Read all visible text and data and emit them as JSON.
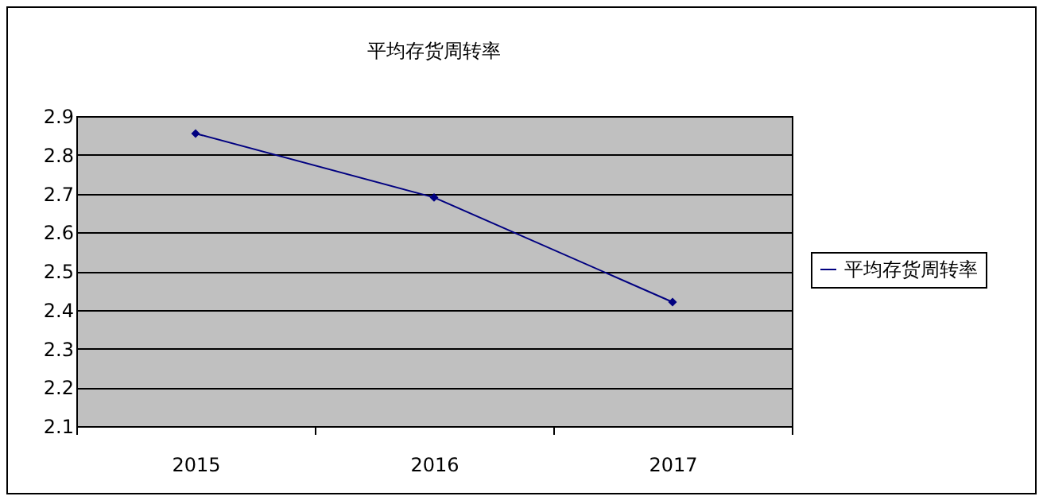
{
  "chart_data": {
    "type": "line",
    "title": "平均存货周转率",
    "categories": [
      "2015",
      "2016",
      "2017"
    ],
    "series": [
      {
        "name": "平均存货周转率",
        "color": "#000080",
        "values": [
          2.855,
          2.69,
          2.42
        ]
      }
    ],
    "ylim": [
      2.1,
      2.9
    ],
    "yticks": [
      2.1,
      2.2,
      2.3,
      2.4,
      2.5,
      2.6,
      2.7,
      2.8,
      2.9
    ],
    "grid": "y",
    "legend": "right",
    "marker": "diamond",
    "line_style": "solid"
  }
}
